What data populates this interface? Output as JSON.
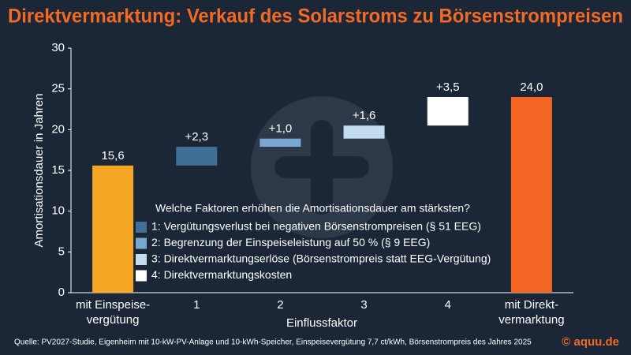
{
  "chart_data": {
    "type": "waterfall",
    "title": "Direktvermarktung: Verkauf des Solarstroms zu Börsenstrompreisen",
    "y_label": "Amortisationsdauer in Jahren",
    "x_label": "Einflussfaktor",
    "categories": [
      "mit Einspeise-\nvergütung",
      "1",
      "2",
      "3",
      "4",
      "mit Direkt-\nvermarktung"
    ],
    "values": [
      15.6,
      2.3,
      1.0,
      1.6,
      3.5,
      24.0
    ],
    "value_labels": [
      "15,6",
      "+2,3",
      "+1,0",
      "+1,6",
      "+3,5",
      "24,0"
    ],
    "measure": [
      "absolute",
      "relative",
      "relative",
      "relative",
      "relative",
      "total"
    ],
    "colors": [
      "#f5a623",
      "#3f6f96",
      "#78a8cf",
      "#c2ddf0",
      "#ffffff",
      "#f26522"
    ],
    "ylim": [
      0,
      30
    ],
    "yticks": [
      0,
      5,
      10,
      15,
      20,
      25,
      30
    ],
    "legend": {
      "title": "Welche Faktoren erhöhen die Amortisationsdauer am stärksten?",
      "entries": [
        "1: Vergütungsverlust bei negativen Börsenstrompreisen (§ 51 EEG)",
        "2: Begrenzung der Einspeiseleistung auf 50 % (§ 9 EEG)",
        "3: Direktvermarktungserlöse (Börsenstrompreis statt EEG-Vergütung)",
        "4: Direktvermarktungskosten"
      ]
    },
    "source": "Quelle: PV2027-Studie, Eigenheim mit 10-kW-PV-Anlage und 10-kWh-Speicher, Einspeisevergütung 7,7 ct/kWh, Börsenstrompreis des Jahres 2025",
    "logo": "© aquu.de"
  }
}
